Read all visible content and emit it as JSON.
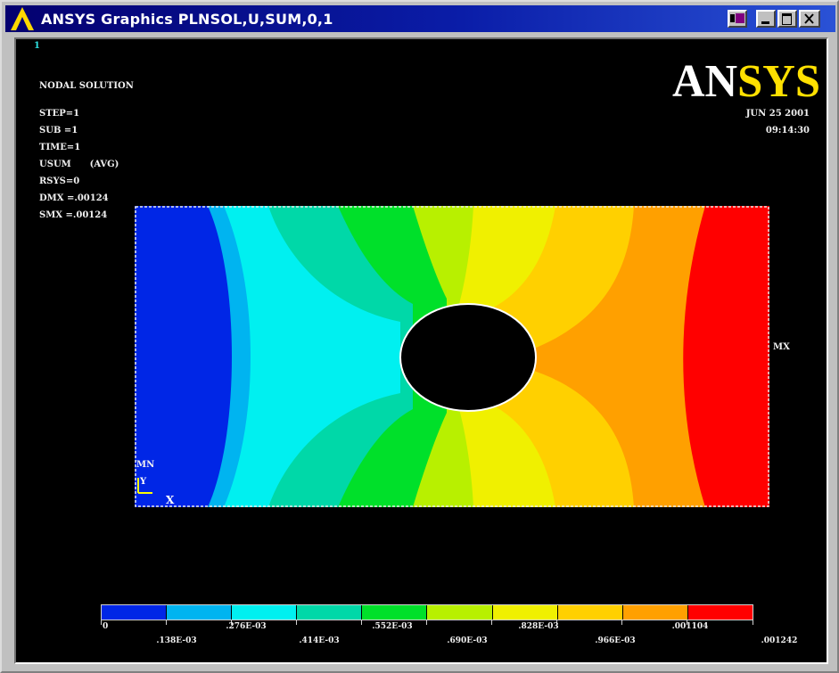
{
  "window": {
    "title": "ANSYS Graphics   PLNSOL,U,SUM,0,1"
  },
  "screen": {
    "window_number": "1",
    "info_lines": [
      "NODAL SOLUTION",
      "STEP=1",
      "SUB =1",
      "TIME=1",
      "USUM      (AVG)",
      "RSYS=0",
      "DMX =.00124",
      "SMX =.00124"
    ],
    "logo": {
      "part1": "AN",
      "part2": "SYS"
    },
    "date": "JUN 25 2001",
    "time": "09:14:30",
    "mx_label": "MX",
    "mn_label": "MN",
    "axis_y": "Y",
    "axis_x": "X"
  },
  "legend": {
    "labels_upper": [
      "0",
      ".276E-03",
      ".552E-03",
      ".828E-03",
      ".001104"
    ],
    "labels_lower": [
      ".138E-03",
      ".414E-03",
      ".690E-03",
      ".966E-03",
      ".001242"
    ],
    "colors": [
      "#0026e6",
      "#00b4f0",
      "#00f0f0",
      "#00d8a8",
      "#00e02a",
      "#b8f000",
      "#f0f000",
      "#ffd000",
      "#ffa000",
      "#ff0000"
    ]
  },
  "colors": {
    "title_bar": "#08108c",
    "plot_background": "#000000",
    "logo_text": "#ffffff",
    "logo_accent": "#ffe000"
  }
}
